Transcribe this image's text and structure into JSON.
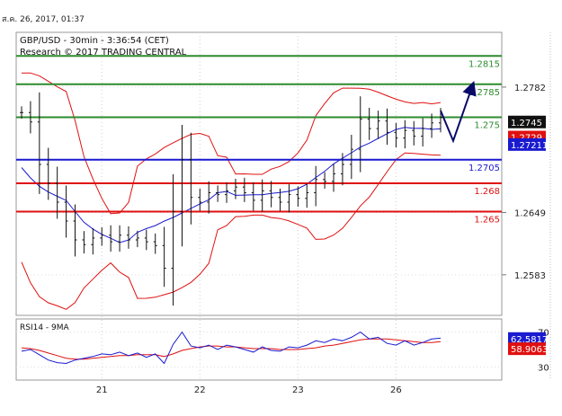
{
  "header": {
    "date_time": "ส.ค. 26, 2017, 01:37"
  },
  "chart_data": {
    "type": "candlestick",
    "title": "GBP/USD - 30min - 3:36:54 (CET)",
    "subtitle": "Research © 2017 TRADING CENTRAL",
    "ylim": [
      1.254,
      1.284
    ],
    "price_axis_ticks": [
      "1.2782",
      "1.2649",
      "1.2583"
    ],
    "x_tick_labels": [
      "21",
      "22",
      "23",
      "26"
    ],
    "current_price": {
      "label": "1.2745",
      "value": 1.2745
    },
    "moving_average_label": {
      "label": "1.2729",
      "value": 1.2729,
      "color": "#e01010"
    },
    "bollinger_mid_label": {
      "label": "1.27211",
      "value": 1.27211,
      "color": "#1a1ad0"
    },
    "levels": [
      {
        "label": "1.2815",
        "value": 1.2815,
        "color": "#2e8b2e",
        "kind": "resistance"
      },
      {
        "label": "1.2785",
        "value": 1.2785,
        "color": "#2e8b2e",
        "kind": "resistance"
      },
      {
        "label": "1.275",
        "value": 1.275,
        "color": "#2e8b2e",
        "kind": "pivot"
      },
      {
        "label": "1.2705",
        "value": 1.2705,
        "color": "#1a1ad0",
        "kind": "pivot-blue"
      },
      {
        "label": "1.268",
        "value": 1.268,
        "color": "#e01010",
        "kind": "support"
      },
      {
        "label": "1.265",
        "value": 1.265,
        "color": "#e01010",
        "kind": "support"
      }
    ],
    "projection_arrow": {
      "from": 1.2757,
      "dip": 1.2725,
      "to": 1.2785,
      "color": "#0a0a6a"
    },
    "price_series": [
      1.2755,
      1.2745,
      1.27,
      1.268,
      1.266,
      1.264,
      1.262,
      1.2615,
      1.2622,
      1.2625,
      1.2618,
      1.2625,
      1.262,
      1.2622,
      1.2618,
      1.2614,
      1.259,
      1.265,
      1.2705,
      1.2665,
      1.266,
      1.267,
      1.2668,
      1.2672,
      1.2676,
      1.267,
      1.2662,
      1.2672,
      1.2665,
      1.266,
      1.2668,
      1.2664,
      1.267,
      1.2684,
      1.2682,
      1.269,
      1.27,
      1.2716,
      1.2748,
      1.2738,
      1.2746,
      1.2734,
      1.2728,
      1.2736,
      1.273,
      1.2738,
      1.2744,
      1.275
    ],
    "rsi": {
      "label": "RSI14 - 9MA",
      "ylim": [
        15,
        85
      ],
      "ticks": [
        "70",
        "30"
      ],
      "value_label": "62.5817",
      "ma_label": "58.9063",
      "value": 62.5817,
      "ma": 58.9063,
      "series": [
        48,
        50,
        44,
        38,
        35,
        34,
        38,
        40,
        42,
        45,
        44,
        47,
        43,
        46,
        41,
        45,
        34,
        56,
        70,
        54,
        52,
        55,
        50,
        55,
        53,
        50,
        47,
        53,
        49,
        48,
        53,
        52,
        55,
        60,
        58,
        62,
        60,
        64,
        70,
        62,
        64,
        57,
        55,
        60,
        55,
        58,
        62,
        63
      ],
      "ma_series": [
        52,
        51,
        49,
        46,
        43,
        40,
        39,
        39,
        40,
        41,
        42,
        43,
        43,
        44,
        44,
        44,
        42,
        45,
        49,
        51,
        53,
        54,
        54,
        53,
        53,
        52,
        51,
        51,
        51,
        50,
        50,
        50,
        51,
        52,
        54,
        55,
        57,
        59,
        61,
        62,
        62,
        62,
        61,
        60,
        59,
        58,
        58,
        59
      ]
    }
  }
}
